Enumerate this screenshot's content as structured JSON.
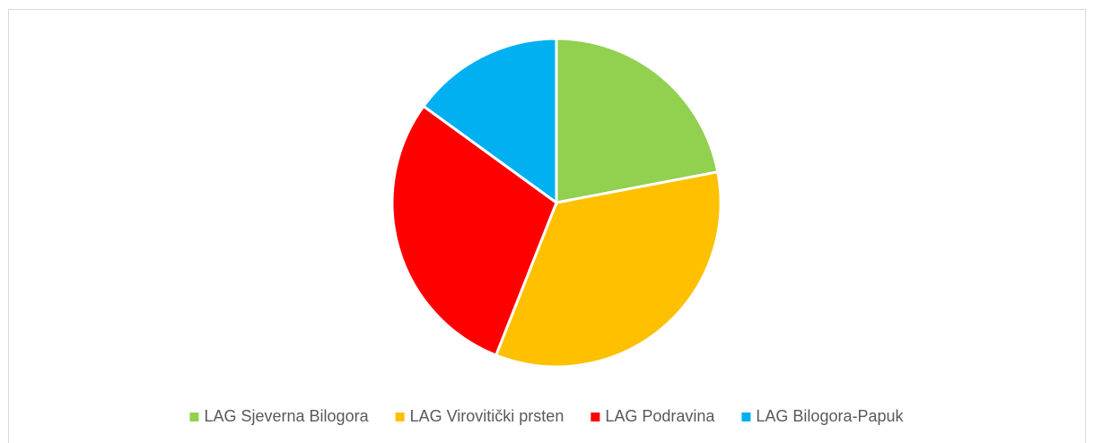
{
  "chart_data": {
    "type": "pie",
    "categories": [
      "LAG Sjeverna Bilogora",
      "LAG Virovitički prsten",
      "LAG Podravina",
      "LAG Bilogora-Papuk"
    ],
    "values": [
      22,
      34,
      29,
      15
    ],
    "colors": [
      "#92d050",
      "#ffc000",
      "#ff0000",
      "#00b0f0"
    ],
    "legend": "bottom"
  }
}
